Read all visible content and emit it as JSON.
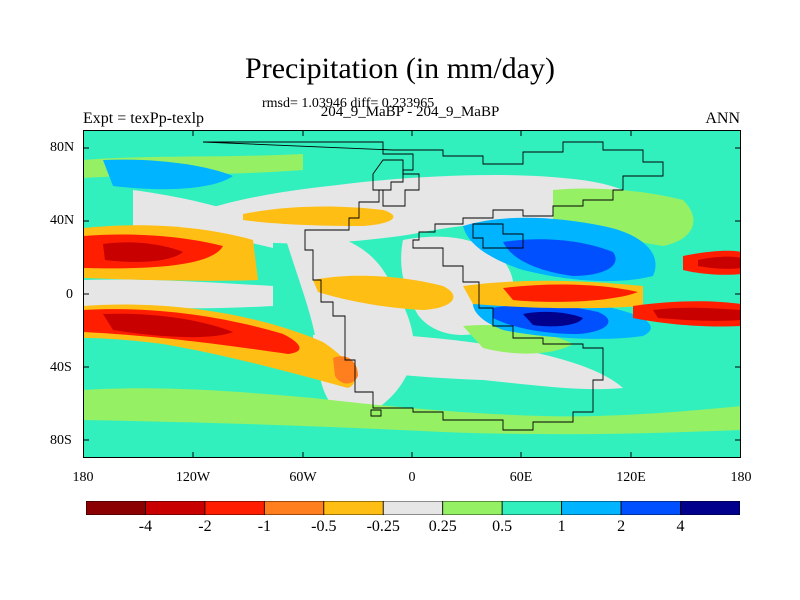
{
  "title": "Precipitation (in mm/day)",
  "stats": "rmsd= 1.03946 diff= 0.233965",
  "subtitle": "204_9_MaBP - 204_9_MaBP",
  "expt_label": "Expt = texPp-texlp",
  "season": "ANN",
  "y_ticks": [
    "80N",
    "40N",
    "0",
    "40S",
    "80S"
  ],
  "x_ticks": [
    "180",
    "120W",
    "60W",
    "0",
    "60E",
    "120E",
    "180"
  ],
  "colorbar": {
    "labels": [
      "-4",
      "-2",
      "-1",
      "-0.5",
      "-0.25",
      "0.25",
      "0.5",
      "1",
      "2",
      "4"
    ],
    "colors": [
      "#8b0000",
      "#c80000",
      "#ff1e00",
      "#ff7f1e",
      "#ffbe14",
      "#e6e6e6",
      "#96f064",
      "#32f0be",
      "#00b4ff",
      "#0050ff",
      "#00008c"
    ]
  }
}
